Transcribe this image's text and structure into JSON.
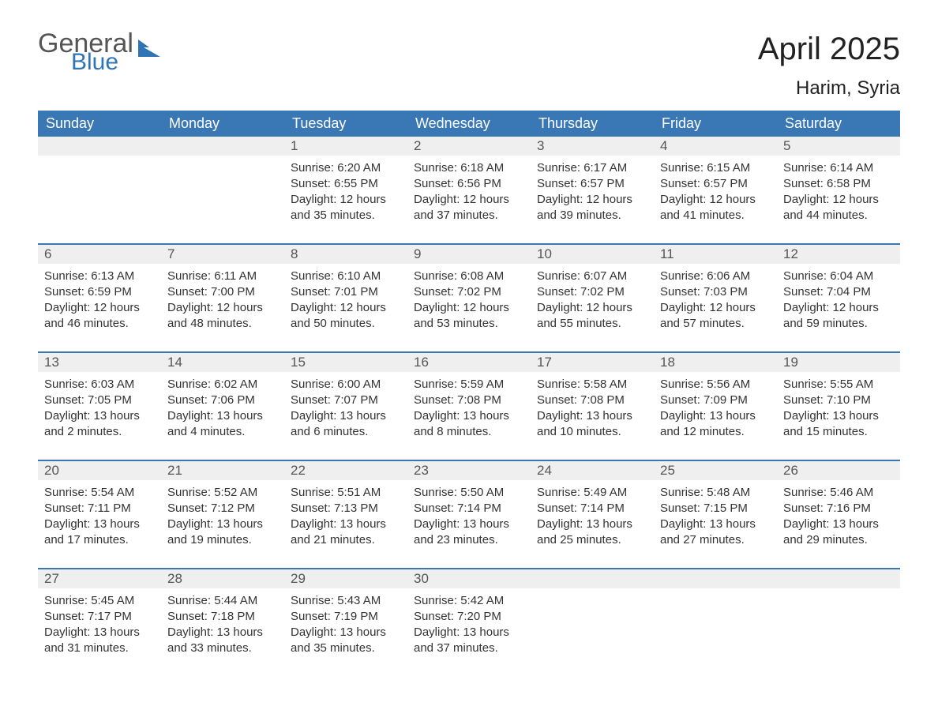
{
  "logo": {
    "text1": "General",
    "text2": "Blue",
    "color_general": "#555555",
    "color_blue": "#2f75b5",
    "shape_color": "#2f75b5"
  },
  "title": "April 2025",
  "subtitle": "Harim, Syria",
  "colors": {
    "header_bg": "#3a78b5",
    "header_text": "#ffffff",
    "daynum_bg": "#efefef",
    "border": "#3a78b5",
    "body_text": "#333333"
  },
  "day_headers": [
    "Sunday",
    "Monday",
    "Tuesday",
    "Wednesday",
    "Thursday",
    "Friday",
    "Saturday"
  ],
  "weeks": [
    [
      {
        "day": "",
        "lines": []
      },
      {
        "day": "",
        "lines": []
      },
      {
        "day": "1",
        "lines": [
          "Sunrise: 6:20 AM",
          "Sunset: 6:55 PM",
          "Daylight: 12 hours and 35 minutes."
        ]
      },
      {
        "day": "2",
        "lines": [
          "Sunrise: 6:18 AM",
          "Sunset: 6:56 PM",
          "Daylight: 12 hours and 37 minutes."
        ]
      },
      {
        "day": "3",
        "lines": [
          "Sunrise: 6:17 AM",
          "Sunset: 6:57 PM",
          "Daylight: 12 hours and 39 minutes."
        ]
      },
      {
        "day": "4",
        "lines": [
          "Sunrise: 6:15 AM",
          "Sunset: 6:57 PM",
          "Daylight: 12 hours and 41 minutes."
        ]
      },
      {
        "day": "5",
        "lines": [
          "Sunrise: 6:14 AM",
          "Sunset: 6:58 PM",
          "Daylight: 12 hours and 44 minutes."
        ]
      }
    ],
    [
      {
        "day": "6",
        "lines": [
          "Sunrise: 6:13 AM",
          "Sunset: 6:59 PM",
          "Daylight: 12 hours and 46 minutes."
        ]
      },
      {
        "day": "7",
        "lines": [
          "Sunrise: 6:11 AM",
          "Sunset: 7:00 PM",
          "Daylight: 12 hours and 48 minutes."
        ]
      },
      {
        "day": "8",
        "lines": [
          "Sunrise: 6:10 AM",
          "Sunset: 7:01 PM",
          "Daylight: 12 hours and 50 minutes."
        ]
      },
      {
        "day": "9",
        "lines": [
          "Sunrise: 6:08 AM",
          "Sunset: 7:02 PM",
          "Daylight: 12 hours and 53 minutes."
        ]
      },
      {
        "day": "10",
        "lines": [
          "Sunrise: 6:07 AM",
          "Sunset: 7:02 PM",
          "Daylight: 12 hours and 55 minutes."
        ]
      },
      {
        "day": "11",
        "lines": [
          "Sunrise: 6:06 AM",
          "Sunset: 7:03 PM",
          "Daylight: 12 hours and 57 minutes."
        ]
      },
      {
        "day": "12",
        "lines": [
          "Sunrise: 6:04 AM",
          "Sunset: 7:04 PM",
          "Daylight: 12 hours and 59 minutes."
        ]
      }
    ],
    [
      {
        "day": "13",
        "lines": [
          "Sunrise: 6:03 AM",
          "Sunset: 7:05 PM",
          "Daylight: 13 hours and 2 minutes."
        ]
      },
      {
        "day": "14",
        "lines": [
          "Sunrise: 6:02 AM",
          "Sunset: 7:06 PM",
          "Daylight: 13 hours and 4 minutes."
        ]
      },
      {
        "day": "15",
        "lines": [
          "Sunrise: 6:00 AM",
          "Sunset: 7:07 PM",
          "Daylight: 13 hours and 6 minutes."
        ]
      },
      {
        "day": "16",
        "lines": [
          "Sunrise: 5:59 AM",
          "Sunset: 7:08 PM",
          "Daylight: 13 hours and 8 minutes."
        ]
      },
      {
        "day": "17",
        "lines": [
          "Sunrise: 5:58 AM",
          "Sunset: 7:08 PM",
          "Daylight: 13 hours and 10 minutes."
        ]
      },
      {
        "day": "18",
        "lines": [
          "Sunrise: 5:56 AM",
          "Sunset: 7:09 PM",
          "Daylight: 13 hours and 12 minutes."
        ]
      },
      {
        "day": "19",
        "lines": [
          "Sunrise: 5:55 AM",
          "Sunset: 7:10 PM",
          "Daylight: 13 hours and 15 minutes."
        ]
      }
    ],
    [
      {
        "day": "20",
        "lines": [
          "Sunrise: 5:54 AM",
          "Sunset: 7:11 PM",
          "Daylight: 13 hours and 17 minutes."
        ]
      },
      {
        "day": "21",
        "lines": [
          "Sunrise: 5:52 AM",
          "Sunset: 7:12 PM",
          "Daylight: 13 hours and 19 minutes."
        ]
      },
      {
        "day": "22",
        "lines": [
          "Sunrise: 5:51 AM",
          "Sunset: 7:13 PM",
          "Daylight: 13 hours and 21 minutes."
        ]
      },
      {
        "day": "23",
        "lines": [
          "Sunrise: 5:50 AM",
          "Sunset: 7:14 PM",
          "Daylight: 13 hours and 23 minutes."
        ]
      },
      {
        "day": "24",
        "lines": [
          "Sunrise: 5:49 AM",
          "Sunset: 7:14 PM",
          "Daylight: 13 hours and 25 minutes."
        ]
      },
      {
        "day": "25",
        "lines": [
          "Sunrise: 5:48 AM",
          "Sunset: 7:15 PM",
          "Daylight: 13 hours and 27 minutes."
        ]
      },
      {
        "day": "26",
        "lines": [
          "Sunrise: 5:46 AM",
          "Sunset: 7:16 PM",
          "Daylight: 13 hours and 29 minutes."
        ]
      }
    ],
    [
      {
        "day": "27",
        "lines": [
          "Sunrise: 5:45 AM",
          "Sunset: 7:17 PM",
          "Daylight: 13 hours and 31 minutes."
        ]
      },
      {
        "day": "28",
        "lines": [
          "Sunrise: 5:44 AM",
          "Sunset: 7:18 PM",
          "Daylight: 13 hours and 33 minutes."
        ]
      },
      {
        "day": "29",
        "lines": [
          "Sunrise: 5:43 AM",
          "Sunset: 7:19 PM",
          "Daylight: 13 hours and 35 minutes."
        ]
      },
      {
        "day": "30",
        "lines": [
          "Sunrise: 5:42 AM",
          "Sunset: 7:20 PM",
          "Daylight: 13 hours and 37 minutes."
        ]
      },
      {
        "day": "",
        "lines": []
      },
      {
        "day": "",
        "lines": []
      },
      {
        "day": "",
        "lines": []
      }
    ]
  ]
}
